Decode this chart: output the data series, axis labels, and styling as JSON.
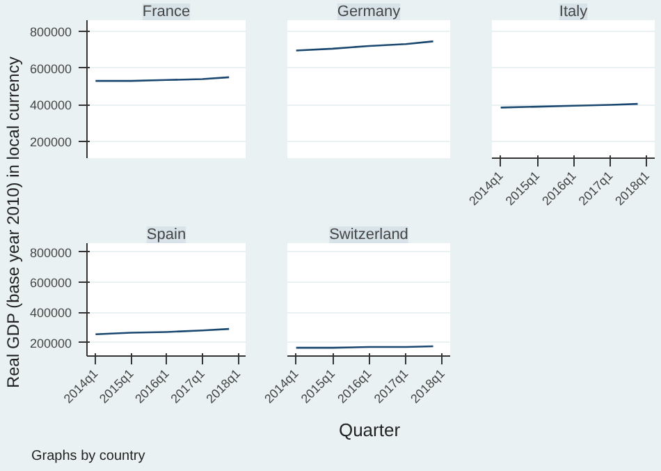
{
  "chart_data": [
    {
      "type": "line",
      "title": "France",
      "ylabel": "Real GDP (base year 2010) in local currency",
      "xlabel": "Quarter",
      "annotations": [
        "Graphs by country"
      ],
      "x": [
        "2014-01",
        "2015-01",
        "2016-01",
        "2017-01",
        "2017-10"
      ],
      "series": [
        {
          "color": "#1a476f",
          "values": [
            530000,
            530000,
            535000,
            540000,
            550000
          ]
        }
      ],
      "xlim": [
        "2013-10-05",
        "2018-03-20"
      ],
      "ylim": [
        110000,
        860000
      ],
      "yticks": [
        200000,
        400000,
        600000,
        800000
      ],
      "grid": "y",
      "tick_labels": "y",
      "marker": "none"
    },
    {
      "type": "line",
      "title": "Germany",
      "x": [
        "2014-01",
        "2015-01",
        "2016-01",
        "2017-01",
        "2017-10"
      ],
      "series": [
        {
          "color": "#1a476f",
          "values": [
            695000,
            705000,
            720000,
            730000,
            745000
          ]
        }
      ],
      "xlim": [
        "2013-10-05",
        "2018-03-20"
      ],
      "ylim": [
        110000,
        860000
      ],
      "yticks": [
        200000,
        400000,
        600000,
        800000
      ],
      "grid": "y",
      "tick_labels": false,
      "marker": "none"
    },
    {
      "type": "line",
      "title": "Italy",
      "x": [
        "2014-01",
        "2015-01",
        "2016-01",
        "2017-01",
        "2017-10"
      ],
      "series": [
        {
          "color": "#1a476f",
          "values": [
            385000,
            390000,
            395000,
            400000,
            405000
          ]
        }
      ],
      "xlim": [
        "2013-10-05",
        "2018-03-20"
      ],
      "ylim": [
        110000,
        860000
      ],
      "xticks": [
        {
          "value": "2014-01",
          "label": "2014q1"
        },
        {
          "value": "2015-01",
          "label": "2015q1"
        },
        {
          "value": "2016-01",
          "label": "2016q1"
        },
        {
          "value": "2017-01",
          "label": "2017q1"
        },
        {
          "value": "2018-01",
          "label": "2018q1"
        }
      ],
      "yticks": [
        200000,
        400000,
        600000,
        800000
      ],
      "grid": "y",
      "tick_labels": "x",
      "marker": "none"
    },
    {
      "type": "line",
      "title": "Spain",
      "x": [
        "2014-01",
        "2015-01",
        "2016-01",
        "2017-01",
        "2017-10"
      ],
      "series": [
        {
          "color": "#1a476f",
          "values": [
            255000,
            265000,
            270000,
            280000,
            290000
          ]
        }
      ],
      "xlim": [
        "2013-10-05",
        "2018-03-20"
      ],
      "ylim": [
        110000,
        860000
      ],
      "xticks": [
        {
          "value": "2014-01",
          "label": "2014q1"
        },
        {
          "value": "2015-01",
          "label": "2015q1"
        },
        {
          "value": "2016-01",
          "label": "2016q1"
        },
        {
          "value": "2017-01",
          "label": "2017q1"
        },
        {
          "value": "2018-01",
          "label": "2018q1"
        }
      ],
      "yticks": [
        200000,
        400000,
        600000,
        800000
      ],
      "grid": "y",
      "marker": "none"
    },
    {
      "type": "line",
      "title": "Switzerland",
      "x": [
        "2014-01",
        "2015-01",
        "2016-01",
        "2017-01",
        "2017-10"
      ],
      "series": [
        {
          "color": "#1a476f",
          "values": [
            165000,
            165000,
            170000,
            170000,
            175000
          ]
        }
      ],
      "xlim": [
        "2013-10-05",
        "2018-03-20"
      ],
      "ylim": [
        110000,
        860000
      ],
      "xticks": [
        {
          "value": "2014-01",
          "label": "2014q1"
        },
        {
          "value": "2015-01",
          "label": "2015q1"
        },
        {
          "value": "2016-01",
          "label": "2016q1"
        },
        {
          "value": "2017-01",
          "label": "2017q1"
        },
        {
          "value": "2018-01",
          "label": "2018q1"
        }
      ],
      "yticks": [
        200000,
        400000,
        600000,
        800000
      ],
      "grid": "y",
      "tick_labels": "x",
      "marker": "none"
    }
  ]
}
